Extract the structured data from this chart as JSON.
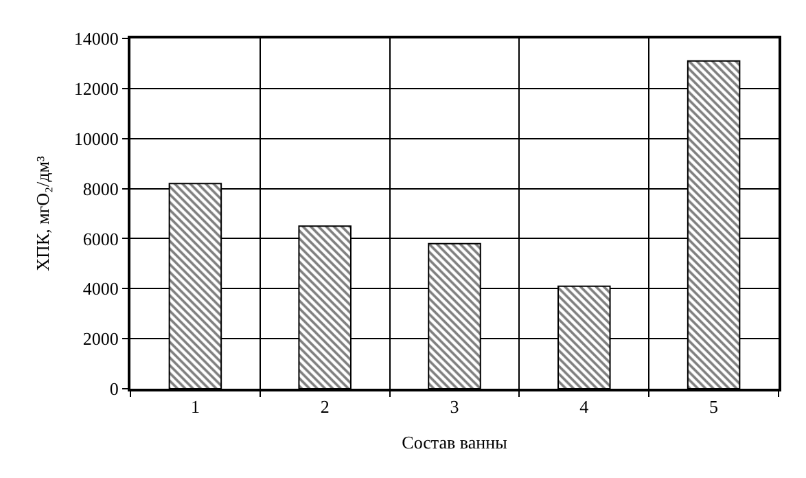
{
  "chart_data": {
    "type": "bar",
    "xlabel": "Состав ванны",
    "ylabel": "ХПК, мгО₂/дм³",
    "categories": [
      "1",
      "2",
      "3",
      "4",
      "5"
    ],
    "values": [
      8200,
      6500,
      5800,
      4100,
      13100
    ],
    "color": "#000000",
    "ylim": [
      0,
      14000
    ],
    "yticks": [
      0,
      2000,
      4000,
      6000,
      8000,
      10000,
      12000,
      14000
    ],
    "grid": true,
    "legend": false
  }
}
